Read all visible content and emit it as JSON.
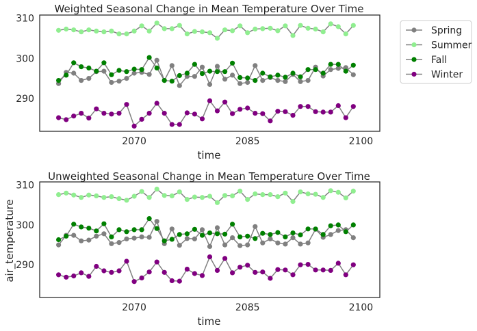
{
  "legend": {
    "placement": "outside-upper-right",
    "entries": [
      {
        "label": "Spring",
        "color": "#808080"
      },
      {
        "label": "Summer",
        "color": "#90EE90"
      },
      {
        "label": "Fall",
        "color": "#008000"
      },
      {
        "label": "Winter",
        "color": "#800080"
      }
    ]
  },
  "line_color": "#808080",
  "chart_data": [
    {
      "type": "line",
      "title": "Weighted Seasonal Change in Mean Temperature Over Time",
      "xlabel": "time",
      "ylabel": "",
      "xlim": [
        2057.5,
        2102.5
      ],
      "ylim": [
        281.8,
        310.8
      ],
      "xticks": [
        2070,
        2085,
        2100
      ],
      "yticks": [
        290,
        300,
        310
      ],
      "grid": false,
      "series": [
        {
          "name": "Spring",
          "color": "#808080",
          "x": [
            2060,
            2061,
            2062,
            2063,
            2064,
            2065,
            2066,
            2067,
            2068,
            2069,
            2070,
            2071,
            2072,
            2073,
            2074,
            2075,
            2076,
            2077,
            2078,
            2079,
            2080,
            2081,
            2082,
            2083,
            2084,
            2085,
            2086,
            2087,
            2088,
            2089,
            2090,
            2091,
            2092,
            2093,
            2094,
            2095,
            2096,
            2097,
            2098,
            2099
          ],
          "values": [
            293.7,
            296.5,
            296.3,
            294.5,
            295.0,
            296.7,
            296.8,
            294.0,
            294.3,
            295.0,
            296.3,
            296.5,
            296.0,
            299.5,
            294.5,
            298.2,
            293.2,
            295.5,
            295.5,
            297.8,
            293.5,
            298.0,
            294.8,
            295.8,
            293.7,
            294.0,
            298.2,
            294.5,
            295.2,
            294.5,
            294.2,
            296.0,
            294.2,
            294.5,
            297.8,
            295.6,
            297.2,
            297.5,
            297.7,
            295.9
          ]
        },
        {
          "name": "Summer",
          "color": "#90EE90",
          "x": [
            2060,
            2061,
            2062,
            2063,
            2064,
            2065,
            2066,
            2067,
            2068,
            2069,
            2070,
            2071,
            2072,
            2073,
            2074,
            2075,
            2076,
            2077,
            2078,
            2079,
            2080,
            2081,
            2082,
            2083,
            2084,
            2085,
            2086,
            2087,
            2088,
            2089,
            2090,
            2091,
            2092,
            2093,
            2094,
            2095,
            2096,
            2097,
            2098,
            2099
          ],
          "values": [
            307.0,
            307.3,
            307.1,
            306.6,
            307.1,
            306.8,
            306.6,
            306.8,
            306.1,
            306.1,
            306.8,
            308.1,
            306.8,
            308.8,
            307.4,
            307.4,
            308.2,
            306.1,
            306.7,
            306.6,
            306.4,
            305.0,
            307.1,
            306.9,
            308.1,
            306.4,
            307.3,
            307.4,
            307.5,
            306.9,
            308.1,
            305.7,
            308.2,
            307.5,
            307.3,
            306.6,
            308.6,
            307.9,
            306.1,
            308.2
          ]
        },
        {
          "name": "Fall",
          "color": "#008000",
          "x": [
            2060,
            2061,
            2062,
            2063,
            2064,
            2065,
            2066,
            2067,
            2068,
            2069,
            2070,
            2071,
            2072,
            2073,
            2074,
            2075,
            2076,
            2077,
            2078,
            2079,
            2080,
            2081,
            2082,
            2083,
            2084,
            2085,
            2086,
            2087,
            2088,
            2089,
            2090,
            2091,
            2092,
            2093,
            2094,
            2095,
            2096,
            2097,
            2098,
            2099
          ],
          "values": [
            294.5,
            295.8,
            298.9,
            297.9,
            297.6,
            296.8,
            298.9,
            295.9,
            297.0,
            296.7,
            297.3,
            297.2,
            300.2,
            297.6,
            294.5,
            294.3,
            295.7,
            296.3,
            298.5,
            296.2,
            296.8,
            296.7,
            296.7,
            298.8,
            295.2,
            295.1,
            294.5,
            296.3,
            295.4,
            295.8,
            295.3,
            296.3,
            295.4,
            297.2,
            297.2,
            296.3,
            298.5,
            298.5,
            296.8,
            298.3
          ]
        },
        {
          "name": "Winter",
          "color": "#800080",
          "x": [
            2060,
            2061,
            2062,
            2063,
            2064,
            2065,
            2066,
            2067,
            2068,
            2069,
            2070,
            2071,
            2072,
            2073,
            2074,
            2075,
            2076,
            2077,
            2078,
            2079,
            2080,
            2081,
            2082,
            2083,
            2084,
            2085,
            2086,
            2087,
            2088,
            2089,
            2090,
            2091,
            2092,
            2093,
            2094,
            2095,
            2096,
            2097,
            2098,
            2099
          ],
          "values": [
            285.2,
            284.7,
            285.6,
            286.3,
            285.1,
            287.4,
            286.3,
            286.1,
            286.3,
            288.5,
            283.1,
            284.8,
            286.3,
            288.8,
            286.3,
            283.5,
            283.5,
            286.4,
            286.1,
            284.9,
            289.4,
            286.9,
            289.1,
            286.2,
            287.3,
            287.6,
            286.3,
            286.2,
            284.4,
            286.8,
            286.7,
            285.8,
            288.0,
            288.0,
            286.7,
            286.6,
            286.6,
            288.2,
            285.2,
            288.0
          ]
        }
      ]
    },
    {
      "type": "line",
      "title": "Unweighted Seasonal Change in Mean Temperature Over Time",
      "xlabel": "time",
      "ylabel": "air_temperature",
      "xlim": [
        2057.5,
        2102.5
      ],
      "ylim": [
        281.8,
        310.8
      ],
      "xticks": [
        2070,
        2085,
        2100
      ],
      "yticks": [
        290,
        300,
        310
      ],
      "grid": false,
      "series": [
        {
          "name": "Spring",
          "color": "#808080",
          "x": [
            2060,
            2061,
            2062,
            2063,
            2064,
            2065,
            2066,
            2067,
            2068,
            2069,
            2070,
            2071,
            2072,
            2073,
            2074,
            2075,
            2076,
            2077,
            2078,
            2079,
            2080,
            2081,
            2082,
            2083,
            2084,
            2085,
            2086,
            2087,
            2088,
            2089,
            2090,
            2091,
            2092,
            2093,
            2094,
            2095,
            2096,
            2097,
            2098,
            2099
          ],
          "values": [
            295.0,
            297.4,
            297.4,
            296.0,
            296.2,
            297.2,
            297.8,
            295.3,
            295.6,
            296.5,
            296.7,
            297.0,
            296.9,
            300.9,
            295.3,
            299.0,
            294.9,
            296.6,
            296.5,
            298.8,
            294.6,
            299.3,
            295.0,
            296.8,
            294.8,
            295.0,
            299.6,
            295.5,
            296.5,
            295.5,
            295.2,
            296.8,
            295.2,
            295.5,
            298.9,
            296.9,
            297.6,
            298.6,
            298.8,
            296.8
          ]
        },
        {
          "name": "Summer",
          "color": "#90EE90",
          "x": [
            2060,
            2061,
            2062,
            2063,
            2064,
            2065,
            2066,
            2067,
            2068,
            2069,
            2070,
            2071,
            2072,
            2073,
            2074,
            2075,
            2076,
            2077,
            2078,
            2079,
            2080,
            2081,
            2082,
            2083,
            2084,
            2085,
            2086,
            2087,
            2088,
            2089,
            2090,
            2091,
            2092,
            2093,
            2094,
            2095,
            2096,
            2097,
            2098,
            2099
          ],
          "values": [
            307.6,
            308.0,
            307.5,
            306.9,
            307.5,
            307.3,
            306.9,
            307.1,
            306.6,
            306.2,
            307.2,
            308.4,
            306.9,
            309.0,
            307.4,
            307.3,
            308.3,
            306.4,
            307.0,
            306.9,
            307.2,
            305.6,
            307.4,
            307.3,
            308.5,
            306.4,
            307.8,
            307.6,
            307.6,
            307.1,
            308.0,
            305.9,
            308.3,
            307.8,
            307.7,
            306.9,
            308.6,
            308.2,
            306.8,
            308.5
          ]
        },
        {
          "name": "Fall",
          "color": "#008000",
          "x": [
            2060,
            2061,
            2062,
            2063,
            2064,
            2065,
            2066,
            2067,
            2068,
            2069,
            2070,
            2071,
            2072,
            2073,
            2074,
            2075,
            2076,
            2077,
            2078,
            2079,
            2080,
            2081,
            2082,
            2083,
            2084,
            2085,
            2086,
            2087,
            2088,
            2089,
            2090,
            2091,
            2092,
            2093,
            2094,
            2095,
            2096,
            2097,
            2098,
            2099
          ],
          "values": [
            296.3,
            297.2,
            300.2,
            299.5,
            299.2,
            298.5,
            300.3,
            297.0,
            298.8,
            298.3,
            298.8,
            298.8,
            301.6,
            299.1,
            296.0,
            296.4,
            297.6,
            297.8,
            298.9,
            297.4,
            298.0,
            297.8,
            297.7,
            300.2,
            297.0,
            297.2,
            296.6,
            297.9,
            297.6,
            298.1,
            297.0,
            298.0,
            297.5,
            299.0,
            299.0,
            297.6,
            299.8,
            300.0,
            298.3,
            300.0
          ]
        },
        {
          "name": "Winter",
          "color": "#800080",
          "x": [
            2060,
            2061,
            2062,
            2063,
            2064,
            2065,
            2066,
            2067,
            2068,
            2069,
            2070,
            2071,
            2072,
            2073,
            2074,
            2075,
            2076,
            2077,
            2078,
            2079,
            2080,
            2081,
            2082,
            2083,
            2084,
            2085,
            2086,
            2087,
            2088,
            2089,
            2090,
            2091,
            2092,
            2093,
            2094,
            2095,
            2096,
            2097,
            2098,
            2099
          ],
          "values": [
            287.5,
            286.9,
            287.2,
            288.0,
            287.1,
            289.6,
            288.5,
            288.1,
            288.5,
            290.9,
            285.8,
            286.7,
            288.2,
            290.7,
            288.1,
            286.0,
            285.9,
            288.9,
            287.8,
            287.3,
            292.0,
            288.6,
            291.6,
            288.0,
            289.4,
            289.9,
            288.1,
            288.2,
            286.6,
            288.8,
            288.7,
            287.5,
            290.0,
            290.1,
            288.7,
            288.7,
            288.6,
            290.4,
            287.5,
            290.0
          ]
        }
      ]
    }
  ]
}
